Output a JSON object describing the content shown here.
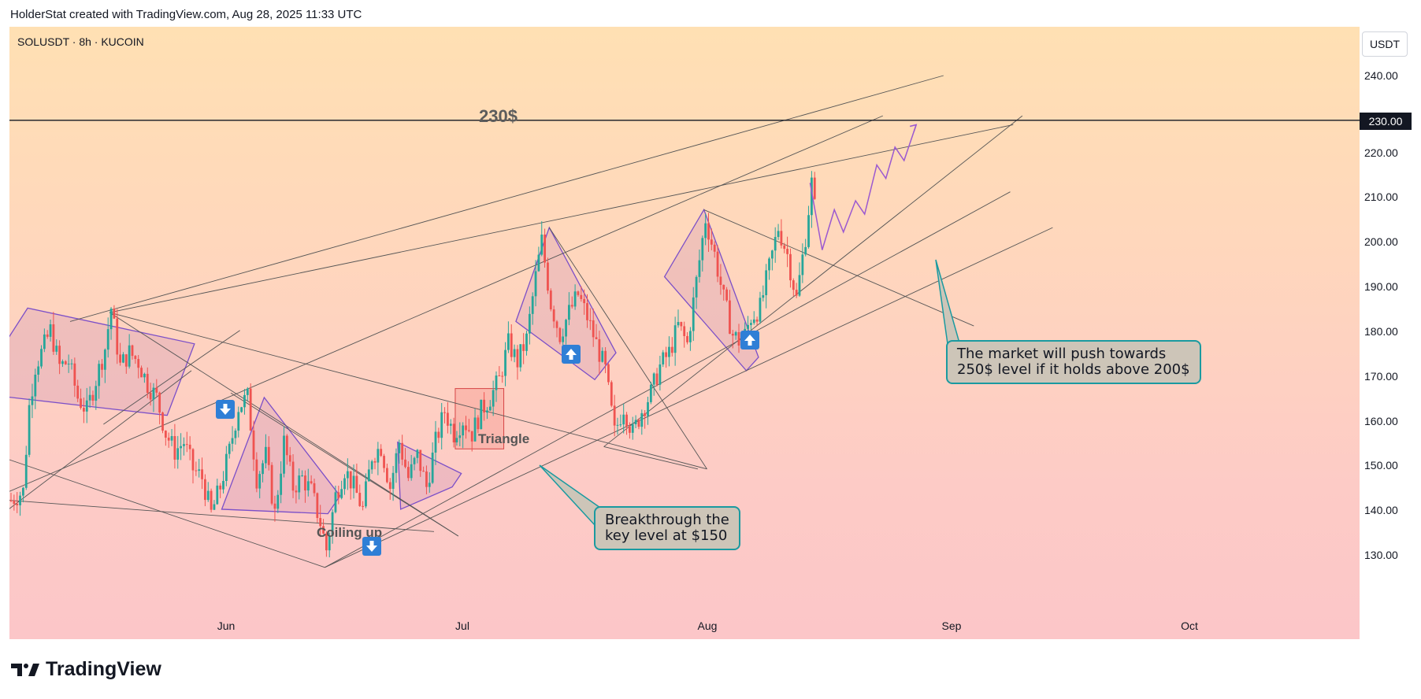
{
  "caption": "HolderStat created with TradingView.com, Aug 28, 2025 11:33 UTC",
  "symbol": "SOLUSDT · 8h · KUCOIN",
  "unit": "USDT",
  "brand": "TradingView",
  "price_tag": "230.00",
  "level_label": "230$",
  "colors": {
    "up": "#26a69a",
    "down": "#ef5350",
    "pattern": "#7b4fc8",
    "callout_border": "#1a9aa0",
    "arrow": "#2f7fd6"
  },
  "annotations": {
    "coiling": "Coiling up",
    "triangle": "Triangle",
    "callout_breakthrough": "Breakthrough the\nkey level at $150",
    "callout_market": "The market will push towards\n250$ level if it holds above 200$"
  },
  "chart_data": {
    "type": "candlestick",
    "title": "SOLUSDT · 8h · KUCOIN",
    "y_ticks": [
      "240.00",
      "230.00",
      "220.00",
      "210.00",
      "200.00",
      "190.00",
      "180.00",
      "170.00",
      "160.00",
      "150.00",
      "140.00",
      "130.00"
    ],
    "x_ticks": [
      "Jun",
      "Jul",
      "Aug",
      "Sep",
      "Oct"
    ],
    "ylim": [
      120,
      246
    ],
    "horizontal_level": 230,
    "close_path": [
      [
        0,
        145
      ],
      [
        4,
        147
      ],
      [
        6,
        166
      ],
      [
        8,
        175
      ],
      [
        10,
        178
      ],
      [
        13,
        183
      ],
      [
        16,
        175
      ],
      [
        19,
        176
      ],
      [
        22,
        168
      ],
      [
        25,
        165
      ],
      [
        28,
        172
      ],
      [
        31,
        179
      ],
      [
        33,
        188
      ],
      [
        36,
        175
      ],
      [
        39,
        178
      ],
      [
        42,
        176
      ],
      [
        45,
        171
      ],
      [
        48,
        168
      ],
      [
        51,
        160
      ],
      [
        54,
        156
      ],
      [
        57,
        158
      ],
      [
        60,
        152
      ],
      [
        63,
        150
      ],
      [
        66,
        142
      ],
      [
        69,
        148
      ],
      [
        72,
        156
      ],
      [
        75,
        166
      ],
      [
        78,
        168
      ],
      [
        81,
        150
      ],
      [
        84,
        155
      ],
      [
        87,
        142
      ],
      [
        90,
        158
      ],
      [
        93,
        148
      ],
      [
        96,
        150
      ],
      [
        99,
        147
      ],
      [
        102,
        140
      ],
      [
        104,
        134
      ],
      [
        107,
        146
      ],
      [
        110,
        152
      ],
      [
        113,
        148
      ],
      [
        116,
        143
      ],
      [
        119,
        155
      ],
      [
        122,
        157
      ],
      [
        125,
        148
      ],
      [
        128,
        158
      ],
      [
        131,
        150
      ],
      [
        134,
        155
      ],
      [
        137,
        148
      ],
      [
        140,
        158
      ],
      [
        143,
        165
      ],
      [
        146,
        160
      ],
      [
        149,
        163
      ],
      [
        152,
        160
      ],
      [
        155,
        165
      ],
      [
        158,
        168
      ],
      [
        161,
        172
      ],
      [
        164,
        180
      ],
      [
        167,
        176
      ],
      [
        170,
        181
      ],
      [
        173,
        195
      ],
      [
        175,
        203
      ],
      [
        178,
        189
      ],
      [
        181,
        182
      ],
      [
        184,
        187
      ],
      [
        187,
        191
      ],
      [
        190,
        186
      ],
      [
        193,
        180
      ],
      [
        196,
        174
      ],
      [
        199,
        160
      ],
      [
        202,
        166
      ],
      [
        205,
        160
      ],
      [
        208,
        165
      ],
      [
        211,
        169
      ],
      [
        214,
        175
      ],
      [
        217,
        178
      ],
      [
        220,
        184
      ],
      [
        223,
        180
      ],
      [
        226,
        194
      ],
      [
        229,
        208
      ],
      [
        232,
        200
      ],
      [
        235,
        190
      ],
      [
        238,
        182
      ],
      [
        241,
        180
      ],
      [
        244,
        186
      ],
      [
        247,
        188
      ],
      [
        250,
        197
      ],
      [
        253,
        206
      ],
      [
        256,
        200
      ],
      [
        259,
        190
      ],
      [
        262,
        204
      ],
      [
        264,
        216
      ],
      [
        266,
        205
      ]
    ],
    "forecast_path": [
      [
        264,
        216
      ],
      [
        268,
        201
      ],
      [
        272,
        210
      ],
      [
        275,
        205
      ],
      [
        279,
        212
      ],
      [
        282,
        209
      ],
      [
        286,
        220
      ],
      [
        289,
        217
      ],
      [
        292,
        224
      ],
      [
        295,
        221
      ],
      [
        299,
        229
      ]
    ],
    "n_candles": 266
  }
}
